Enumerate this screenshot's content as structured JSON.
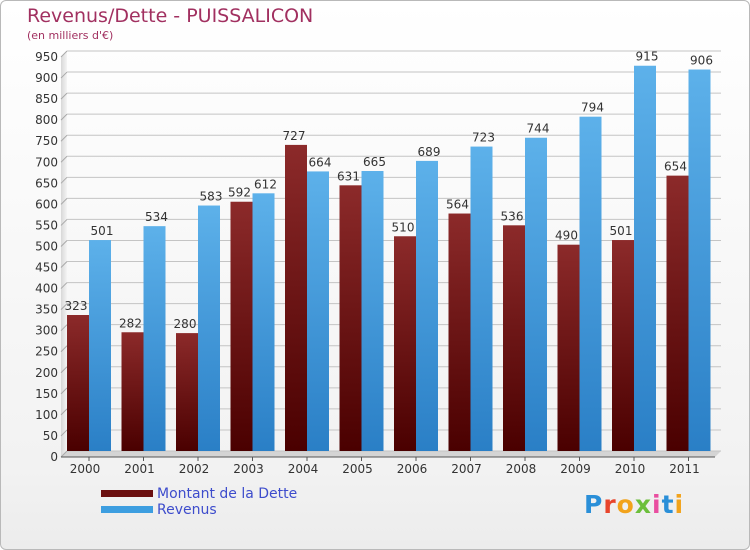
{
  "title": "Revenus/Dette - PUISSALICON",
  "subtitle": "(en milliers d'€)",
  "chart_data": {
    "type": "bar",
    "categories": [
      "2000",
      "2001",
      "2002",
      "2003",
      "2004",
      "2005",
      "2006",
      "2007",
      "2008",
      "2009",
      "2010",
      "2011"
    ],
    "series": [
      {
        "name": "Montant de la Dette",
        "values": [
          323,
          282,
          280,
          592,
          727,
          631,
          510,
          564,
          536,
          490,
          501,
          654
        ],
        "color": "#7a1010"
      },
      {
        "name": "Revenus",
        "values": [
          501,
          534,
          583,
          612,
          664,
          665,
          689,
          723,
          744,
          794,
          915,
          906
        ],
        "color": "#3d9ee0"
      }
    ],
    "ylim": [
      0,
      950
    ],
    "yticks": [
      0,
      50,
      100,
      150,
      200,
      250,
      300,
      350,
      400,
      450,
      500,
      550,
      600,
      650,
      700,
      750,
      800,
      850,
      900,
      950
    ],
    "grid": true,
    "legend": "bottom-left"
  },
  "legend": {
    "debt_label": "Montant de la Dette",
    "revenue_label": "Revenus"
  },
  "logo": {
    "text": "Proxiti",
    "colors": [
      "#2a8fd8",
      "#e8452c",
      "#f2a31b",
      "#6cbf3b",
      "#e94ea0",
      "#2a8fd8",
      "#f2a31b"
    ]
  }
}
